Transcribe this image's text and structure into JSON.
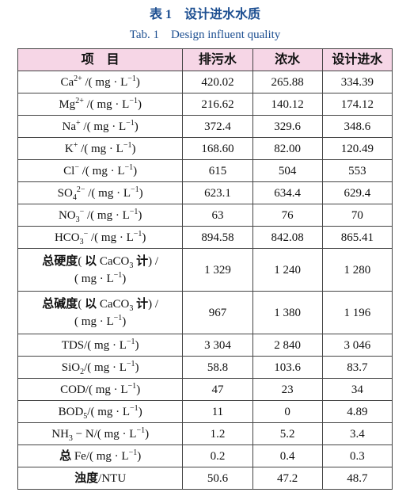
{
  "header": {
    "title": "表 1　设计进水水质",
    "subtitle": "Tab. 1　Design influent quality"
  },
  "table": {
    "columns": [
      "项　目",
      "排污水",
      "浓水",
      "设计进水"
    ],
    "rows": [
      {
        "item": [
          [
            {
              "t": "Ca"
            },
            {
              "sup": "2+"
            },
            {
              "t": " /( mg · L"
            },
            {
              "sup": "−1"
            },
            {
              "t": ")"
            }
          ]
        ],
        "values": [
          "420.02",
          "265.88",
          "334.39"
        ]
      },
      {
        "item": [
          [
            {
              "t": "Mg"
            },
            {
              "sup": "2+"
            },
            {
              "t": " /( mg · L"
            },
            {
              "sup": "−1"
            },
            {
              "t": ")"
            }
          ]
        ],
        "values": [
          "216.62",
          "140.12",
          "174.12"
        ]
      },
      {
        "item": [
          [
            {
              "t": "Na"
            },
            {
              "sup": "+"
            },
            {
              "t": " /( mg · L"
            },
            {
              "sup": "−1"
            },
            {
              "t": ")"
            }
          ]
        ],
        "values": [
          "372.4",
          "329.6",
          "348.6"
        ]
      },
      {
        "item": [
          [
            {
              "t": "K"
            },
            {
              "sup": "+"
            },
            {
              "t": " /( mg · L"
            },
            {
              "sup": "−1"
            },
            {
              "t": ")"
            }
          ]
        ],
        "values": [
          "168.60",
          "82.00",
          "120.49"
        ]
      },
      {
        "item": [
          [
            {
              "t": "Cl"
            },
            {
              "sup": "−"
            },
            {
              "t": " /( mg · L"
            },
            {
              "sup": "−1"
            },
            {
              "t": ")"
            }
          ]
        ],
        "values": [
          "615",
          "504",
          "553"
        ]
      },
      {
        "item": [
          [
            {
              "t": "SO"
            },
            {
              "sub": "4"
            },
            {
              "sup": "2−"
            },
            {
              "t": " /( mg · L"
            },
            {
              "sup": "−1"
            },
            {
              "t": ")"
            }
          ]
        ],
        "values": [
          "623.1",
          "634.4",
          "629.4"
        ]
      },
      {
        "item": [
          [
            {
              "t": "NO"
            },
            {
              "sub": "3"
            },
            {
              "sup": "−"
            },
            {
              "t": " /( mg · L"
            },
            {
              "sup": "−1"
            },
            {
              "t": ")"
            }
          ]
        ],
        "values": [
          "63",
          "76",
          "70"
        ]
      },
      {
        "item": [
          [
            {
              "t": "HCO"
            },
            {
              "sub": "3"
            },
            {
              "sup": "−"
            },
            {
              "t": " /( mg · L"
            },
            {
              "sup": "−1"
            },
            {
              "t": ")"
            }
          ]
        ],
        "values": [
          "894.58",
          "842.08",
          "865.41"
        ]
      },
      {
        "item": [
          [
            {
              "b": "总硬度"
            },
            {
              "t": "( "
            },
            {
              "b": "以"
            },
            {
              "t": " CaCO"
            },
            {
              "sub": "3"
            },
            {
              "t": " "
            },
            {
              "b": "计"
            },
            {
              "t": ") /"
            }
          ],
          [
            {
              "t": "( mg · L"
            },
            {
              "sup": "−1"
            },
            {
              "t": ")"
            }
          ]
        ],
        "values": [
          "1 329",
          "1 240",
          "1 280"
        ]
      },
      {
        "item": [
          [
            {
              "b": "总碱度"
            },
            {
              "t": "( "
            },
            {
              "b": "以"
            },
            {
              "t": " CaCO"
            },
            {
              "sub": "3"
            },
            {
              "t": " "
            },
            {
              "b": "计"
            },
            {
              "t": ") /"
            }
          ],
          [
            {
              "t": "( mg · L"
            },
            {
              "sup": "−1"
            },
            {
              "t": ")"
            }
          ]
        ],
        "values": [
          "967",
          "1 380",
          "1 196"
        ]
      },
      {
        "item": [
          [
            {
              "t": "TDS/( mg · L"
            },
            {
              "sup": "−1"
            },
            {
              "t": ")"
            }
          ]
        ],
        "values": [
          "3 304",
          "2 840",
          "3 046"
        ]
      },
      {
        "item": [
          [
            {
              "t": "SiO"
            },
            {
              "sub": "2"
            },
            {
              "t": "/( mg · L"
            },
            {
              "sup": "−1"
            },
            {
              "t": ")"
            }
          ]
        ],
        "values": [
          "58.8",
          "103.6",
          "83.7"
        ]
      },
      {
        "item": [
          [
            {
              "t": "COD/( mg · L"
            },
            {
              "sup": "−1"
            },
            {
              "t": ")"
            }
          ]
        ],
        "values": [
          "47",
          "23",
          "34"
        ]
      },
      {
        "item": [
          [
            {
              "t": "BOD"
            },
            {
              "sub": "5"
            },
            {
              "t": "/( mg · L"
            },
            {
              "sup": "−1"
            },
            {
              "t": ")"
            }
          ]
        ],
        "values": [
          "11",
          "0",
          "4.89"
        ]
      },
      {
        "item": [
          [
            {
              "t": "NH"
            },
            {
              "sub": "3"
            },
            {
              "t": " − N/( mg · L"
            },
            {
              "sup": "−1"
            },
            {
              "t": ")"
            }
          ]
        ],
        "values": [
          "1.2",
          "5.2",
          "3.4"
        ]
      },
      {
        "item": [
          [
            {
              "b": "总"
            },
            {
              "t": " Fe/( mg · L"
            },
            {
              "sup": "−1"
            },
            {
              "t": ")"
            }
          ]
        ],
        "values": [
          "0.2",
          "0.4",
          "0.3"
        ]
      },
      {
        "item": [
          [
            {
              "b": "浊度"
            },
            {
              "t": "/NTU"
            }
          ]
        ],
        "values": [
          "50.6",
          "47.2",
          "48.7"
        ]
      }
    ]
  }
}
